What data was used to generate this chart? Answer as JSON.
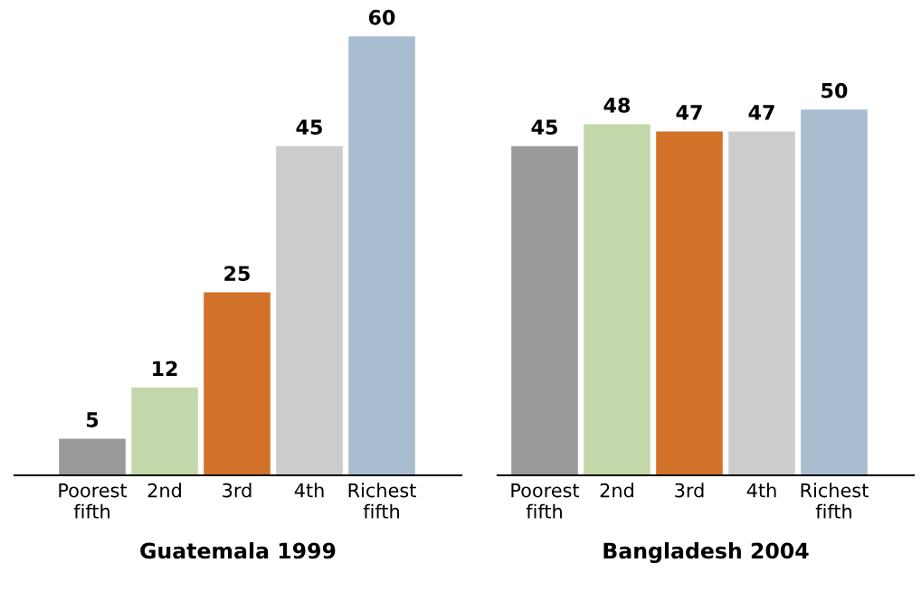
{
  "chart_data": [
    {
      "type": "bar",
      "xlabel": "Guatemala 1999",
      "categories": [
        "Poorest\nfifth",
        "2nd",
        "3rd",
        "4th",
        "Richest\nfifth"
      ],
      "values": [
        5,
        12,
        25,
        45,
        60
      ],
      "colors": [
        "#999999",
        "#c4d7aa",
        "#d2722a",
        "#cccccc",
        "#a9bdd0"
      ],
      "data_labels": true
    },
    {
      "type": "bar",
      "xlabel": "Bangladesh 2004",
      "categories": [
        "Poorest\nfifth",
        "2nd",
        "3rd",
        "4th",
        "Richest\nfifth"
      ],
      "values": [
        45,
        48,
        47,
        47,
        50
      ],
      "colors": [
        "#999999",
        "#c4d7aa",
        "#d2722a",
        "#cccccc",
        "#a9bdd0"
      ],
      "data_labels": true
    }
  ]
}
